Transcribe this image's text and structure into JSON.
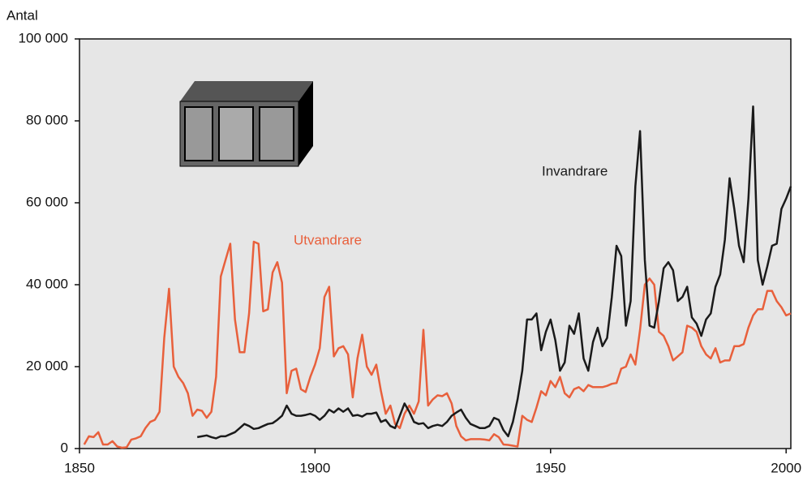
{
  "chart_data": {
    "type": "line",
    "y_label": "Antal",
    "x": [
      1851,
      1852,
      1853,
      1854,
      1855,
      1856,
      1857,
      1858,
      1859,
      1860,
      1861,
      1862,
      1863,
      1864,
      1865,
      1866,
      1867,
      1868,
      1869,
      1870,
      1871,
      1872,
      1873,
      1874,
      1875,
      1876,
      1877,
      1878,
      1879,
      1880,
      1881,
      1882,
      1883,
      1884,
      1885,
      1886,
      1887,
      1888,
      1889,
      1890,
      1891,
      1892,
      1893,
      1894,
      1895,
      1896,
      1897,
      1898,
      1899,
      1900,
      1901,
      1902,
      1903,
      1904,
      1905,
      1906,
      1907,
      1908,
      1909,
      1910,
      1911,
      1912,
      1913,
      1914,
      1915,
      1916,
      1917,
      1918,
      1919,
      1920,
      1921,
      1922,
      1923,
      1924,
      1925,
      1926,
      1927,
      1928,
      1929,
      1930,
      1931,
      1932,
      1933,
      1934,
      1935,
      1936,
      1937,
      1938,
      1939,
      1940,
      1941,
      1942,
      1943,
      1944,
      1945,
      1946,
      1947,
      1948,
      1949,
      1950,
      1951,
      1952,
      1953,
      1954,
      1955,
      1956,
      1957,
      1958,
      1959,
      1960,
      1961,
      1962,
      1963,
      1964,
      1965,
      1966,
      1967,
      1968,
      1969,
      1970,
      1971,
      1972,
      1973,
      1974,
      1975,
      1976,
      1977,
      1978,
      1979,
      1980,
      1981,
      1982,
      1983,
      1984,
      1985,
      1986,
      1987,
      1988,
      1989,
      1990,
      1991,
      1992,
      1993,
      1994,
      1995,
      1996,
      1997,
      1998,
      1999,
      2000,
      2001
    ],
    "series": [
      {
        "name": "Utvandrare",
        "color": "#e8603c",
        "values": [
          1000,
          3000,
          2800,
          4000,
          1000,
          1000,
          1800,
          500,
          200,
          300,
          2200,
          2500,
          3000,
          5000,
          6500,
          7000,
          9000,
          27000,
          39000,
          20000,
          17500,
          16000,
          13500,
          8000,
          9500,
          9200,
          7500,
          9000,
          17500,
          42000,
          46000,
          50000,
          31500,
          23500,
          23500,
          33000,
          50500,
          50000,
          33500,
          34000,
          43000,
          45500,
          40500,
          13500,
          19000,
          19500,
          14500,
          13800,
          17500,
          20500,
          24500,
          37000,
          39500,
          22500,
          24500,
          25000,
          23000,
          12500,
          22000,
          27800,
          20000,
          18000,
          20500,
          14000,
          8500,
          10500,
          6000,
          5000,
          8500,
          10500,
          8500,
          11500,
          29000,
          10500,
          12000,
          13000,
          12800,
          13500,
          11000,
          5500,
          3000,
          2000,
          2300,
          2300,
          2300,
          2200,
          2000,
          3500,
          2800,
          1000,
          900,
          700,
          500,
          8000,
          7000,
          6500,
          10000,
          14000,
          13000,
          16500,
          15000,
          17500,
          13500,
          12500,
          14500,
          15000,
          14000,
          15500,
          15000,
          15000,
          15000,
          15300,
          15800,
          16000,
          19500,
          20000,
          23000,
          20500,
          29000,
          40000,
          41500,
          40000,
          28500,
          27500,
          25000,
          21500,
          22500,
          23500,
          30000,
          29500,
          28500,
          25000,
          23000,
          22000,
          24500,
          21000,
          21500,
          21500,
          25000,
          25000,
          25500,
          29500,
          32500,
          34000,
          34000,
          38500,
          38500,
          36000,
          34500,
          32500,
          33000
        ]
      },
      {
        "name": "Invandrare",
        "color": "#1a1a1a",
        "values": [
          null,
          null,
          null,
          null,
          null,
          null,
          null,
          null,
          null,
          null,
          null,
          null,
          null,
          null,
          null,
          null,
          null,
          null,
          null,
          null,
          null,
          null,
          null,
          null,
          2800,
          3000,
          3200,
          2800,
          2500,
          3000,
          3000,
          3500,
          4000,
          5000,
          6000,
          5500,
          4800,
          5000,
          5500,
          6000,
          6200,
          7000,
          8000,
          10500,
          8500,
          8000,
          8000,
          8200,
          8500,
          8000,
          7000,
          8000,
          9500,
          8800,
          9800,
          9000,
          9800,
          8000,
          8200,
          7800,
          8500,
          8500,
          8800,
          6500,
          7000,
          5500,
          5000,
          8000,
          11000,
          9000,
          6500,
          6000,
          6200,
          5000,
          5500,
          5800,
          5500,
          6500,
          8000,
          8800,
          9500,
          7500,
          6000,
          5500,
          5000,
          5000,
          5500,
          7500,
          7000,
          4500,
          3000,
          6500,
          12000,
          19000,
          31500,
          31500,
          33000,
          24000,
          28500,
          31500,
          26500,
          19000,
          21000,
          30000,
          28000,
          33000,
          22000,
          19000,
          26000,
          29500,
          25000,
          27000,
          37000,
          49500,
          47000,
          30000,
          36000,
          64000,
          77500,
          46000,
          30000,
          29500,
          36000,
          44000,
          45500,
          43500,
          36000,
          37000,
          39500,
          32000,
          30500,
          27500,
          31500,
          33000,
          39500,
          42500,
          51000,
          66000,
          58500,
          49500,
          45500,
          61000,
          83500,
          46000,
          40000,
          44500,
          49500,
          50000,
          58500,
          61000,
          64000
        ]
      }
    ],
    "xlim": [
      1850,
      2001
    ],
    "xticks": [
      1850,
      1900,
      1950,
      2000
    ],
    "ylim": [
      0,
      100000
    ],
    "yticks": [
      0,
      {
        "value": 20000,
        "label": "20 000"
      },
      {
        "value": 40000,
        "label": "40 000"
      },
      {
        "value": 60000,
        "label": "60 000"
      },
      {
        "value": 80000,
        "label": "80 000"
      },
      {
        "value": 100000,
        "label": "100 000"
      }
    ]
  }
}
